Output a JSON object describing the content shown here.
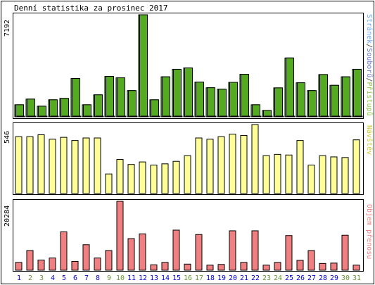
{
  "title": "Denní statistika za prosinec 2017",
  "colors": {
    "frame": "#000000",
    "bar_outline": "#000000",
    "pristupu": "#66cc44",
    "souboru": "#55aa22",
    "stranek": "#99ccff",
    "navstev": "#ffff99",
    "objem": "#f08080",
    "weekday_label": "#0000cc",
    "weekend_label": "#669933",
    "legend_stranek": "#66aaff",
    "legend_souboru": "#6677cc",
    "legend_separator": "#333333",
    "legend_pristupu": "#88cc44",
    "legend_navstev": "#cccc33",
    "legend_objem": "#f08080"
  },
  "chart_data": {
    "type": "bar",
    "title": "Denní statistika za prosinec 2017",
    "categories": [
      "1",
      "2",
      "3",
      "4",
      "5",
      "6",
      "7",
      "8",
      "9",
      "10",
      "11",
      "12",
      "13",
      "14",
      "15",
      "16",
      "17",
      "18",
      "19",
      "20",
      "21",
      "22",
      "23",
      "24",
      "25",
      "26",
      "27",
      "28",
      "29",
      "30",
      "31"
    ],
    "weekend_days": [
      2,
      3,
      9,
      10,
      16,
      17,
      23,
      24,
      30,
      31
    ],
    "panels": [
      {
        "key": "hits",
        "axis_max_label": "7192",
        "ylim": [
          0,
          7192
        ],
        "legend": [
          "Přístupů",
          "Souborů",
          "Stránek"
        ],
        "legend_separator": "/",
        "series": [
          {
            "name": "Přístupů",
            "values": [
              850,
              1250,
              750,
              1200,
              1300,
              2700,
              850,
              1550,
              2850,
              2750,
              1850,
              7192,
              1200,
              2820,
              3350,
              3450,
              2450,
              2050,
              1950,
              2430,
              3000,
              850,
              450,
              2040,
              4150,
              2400,
              1850,
              2980,
              2220,
              2820,
              3350
            ]
          },
          {
            "name": "Souborů",
            "values": [
              850,
              1250,
              750,
              1200,
              1300,
              2700,
              850,
              1550,
              2850,
              2750,
              1850,
              7192,
              1200,
              2820,
              3350,
              3450,
              2450,
              2050,
              1950,
              2430,
              3000,
              850,
              450,
              2040,
              4150,
              2400,
              1850,
              2980,
              2220,
              2820,
              3350
            ]
          },
          {
            "name": "Stránek",
            "values": [
              0,
              0,
              0,
              0,
              0,
              0,
              0,
              0,
              0,
              0,
              0,
              0,
              0,
              0,
              0,
              0,
              0,
              0,
              0,
              0,
              0,
              0,
              0,
              0,
              0,
              0,
              0,
              0,
              0,
              0,
              0
            ]
          }
        ]
      },
      {
        "key": "visits",
        "axis_max_label": "546",
        "ylim": [
          0,
          546
        ],
        "legend": [
          "Návštěv"
        ],
        "series": [
          {
            "name": "Návštěv",
            "values": [
              450,
              450,
              465,
              430,
              445,
              420,
              440,
              440,
              155,
              270,
              230,
              250,
              225,
              235,
              255,
              300,
              440,
              430,
              450,
              470,
              460,
              546,
              300,
              310,
              305,
              420,
              225,
              300,
              290,
              285,
              425
            ]
          }
        ]
      },
      {
        "key": "volume",
        "axis_max_label": "20284",
        "ylim": [
          0,
          20284
        ],
        "legend": [
          "Objem přenosu"
        ],
        "series": [
          {
            "name": "Objem přenosu",
            "values": [
              2300,
              5800,
              3000,
              3600,
              11300,
              2600,
              7500,
              3600,
              5800,
              20284,
              9300,
              10700,
              1600,
              2300,
              11800,
              1800,
              10500,
              1500,
              1700,
              11600,
              2300,
              11600,
              1500,
              2300,
              10200,
              2900,
              5800,
              2000,
              2100,
              10300,
              1500
            ]
          }
        ]
      }
    ]
  }
}
